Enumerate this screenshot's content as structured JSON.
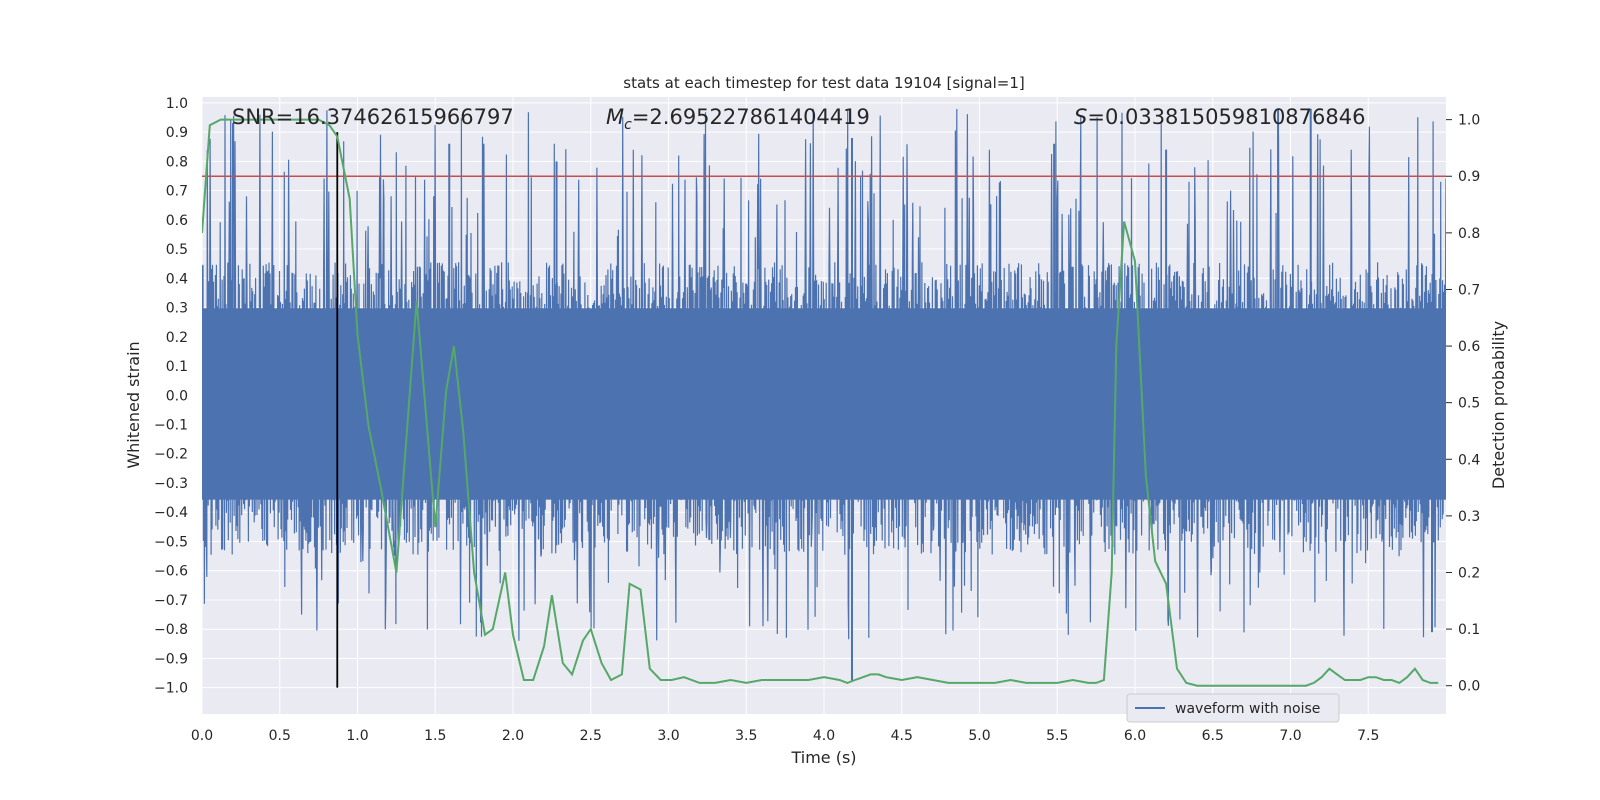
{
  "chart_data": {
    "type": "line",
    "title": "stats at each timestep for test data 19104 [signal=1]",
    "xlabel": "Time (s)",
    "ylabel_left": "Whitened strain",
    "ylabel_right": "Detection probability",
    "xlim": [
      0,
      8
    ],
    "ylim_left": [
      -1.09,
      1.02
    ],
    "ylim_right": [
      -0.05,
      1.04
    ],
    "x_ticks": [
      "0.0",
      "0.5",
      "1.0",
      "1.5",
      "2.0",
      "2.5",
      "3.0",
      "3.5",
      "4.0",
      "4.5",
      "5.0",
      "5.5",
      "6.0",
      "6.5",
      "7.0",
      "7.5"
    ],
    "y_left_ticks": [
      "1.0",
      "0.9",
      "0.8",
      "0.7",
      "0.6",
      "0.5",
      "0.4",
      "0.3",
      "0.2",
      "0.1",
      "0.0",
      "-0.1",
      "-0.2",
      "-0.3",
      "-0.4",
      "-0.5",
      "-0.6",
      "-0.7",
      "-0.8",
      "-0.9",
      "-1.0"
    ],
    "y_right_ticks": [
      "1.0",
      "0.9",
      "0.8",
      "0.7",
      "0.6",
      "0.5",
      "0.4",
      "0.3",
      "0.2",
      "0.1",
      "0.0"
    ],
    "annotations": {
      "snr": "SNR=16.37462615966797",
      "mc_symbol": "M",
      "mc_sub": "c",
      "mc_value": "=2.695227861404419",
      "s_symbol": "S",
      "s_value": "=0.033815059810876846"
    },
    "legend": {
      "label": "waveform with noise",
      "location": "lower-right"
    },
    "threshold": 0.9,
    "marker_time": 0.87,
    "series": [
      {
        "name": "waveform with noise",
        "axis": "left",
        "color": "#4c72b0",
        "description": "dense whitened strain, roughly uniform noise band",
        "band": {
          "core_low": -0.42,
          "core_high": 0.35,
          "spike_low": -0.84,
          "spike_high": 0.98
        },
        "notable_spikes": [
          {
            "t": 4.18,
            "v": -0.98
          },
          {
            "t": 4.18,
            "v": 0.88
          },
          {
            "t": 6.92,
            "v": 0.98
          },
          {
            "t": 7.13,
            "v": 0.98
          },
          {
            "t": 1.59,
            "v": 0.86
          },
          {
            "t": 1.81,
            "v": 0.86
          },
          {
            "t": 5.48,
            "v": 0.86
          },
          {
            "t": 6.2,
            "v": 0.84
          },
          {
            "t": 2.28,
            "v": 0.8
          },
          {
            "t": 7.91,
            "v": -0.81
          }
        ]
      },
      {
        "name": "detection probability",
        "axis": "right",
        "color": "#55a868",
        "x": [
          0.0,
          0.05,
          0.12,
          0.3,
          0.5,
          0.75,
          0.82,
          0.87,
          0.95,
          1.0,
          1.07,
          1.15,
          1.25,
          1.38,
          1.5,
          1.57,
          1.62,
          1.68,
          1.75,
          1.82,
          1.87,
          1.95,
          2.0,
          2.07,
          2.13,
          2.2,
          2.25,
          2.32,
          2.38,
          2.45,
          2.5,
          2.57,
          2.63,
          2.7,
          2.75,
          2.82,
          2.88,
          2.95,
          3.02,
          3.1,
          3.2,
          3.3,
          3.4,
          3.5,
          3.6,
          3.7,
          3.8,
          3.9,
          4.0,
          4.1,
          4.15,
          4.2,
          4.25,
          4.3,
          4.35,
          4.4,
          4.5,
          4.6,
          4.7,
          4.8,
          4.9,
          5.0,
          5.1,
          5.2,
          5.3,
          5.4,
          5.5,
          5.6,
          5.7,
          5.75,
          5.8,
          5.85,
          5.88,
          5.93,
          6.0,
          6.07,
          6.13,
          6.2,
          6.27,
          6.33,
          6.4,
          6.5,
          6.6,
          6.7,
          6.8,
          6.9,
          7.0,
          7.1,
          7.15,
          7.2,
          7.25,
          7.3,
          7.35,
          7.4,
          7.45,
          7.5,
          7.55,
          7.6,
          7.65,
          7.7,
          7.75,
          7.8,
          7.85,
          7.9,
          7.95
        ],
        "y": [
          0.8,
          0.99,
          1.0,
          1.0,
          1.0,
          1.0,
          0.99,
          0.97,
          0.86,
          0.62,
          0.46,
          0.35,
          0.2,
          0.68,
          0.28,
          0.52,
          0.6,
          0.45,
          0.2,
          0.09,
          0.1,
          0.2,
          0.09,
          0.01,
          0.01,
          0.07,
          0.16,
          0.04,
          0.02,
          0.08,
          0.1,
          0.04,
          0.01,
          0.02,
          0.18,
          0.17,
          0.03,
          0.01,
          0.01,
          0.015,
          0.005,
          0.005,
          0.01,
          0.005,
          0.01,
          0.01,
          0.01,
          0.01,
          0.015,
          0.01,
          0.005,
          0.01,
          0.015,
          0.02,
          0.02,
          0.015,
          0.01,
          0.015,
          0.01,
          0.005,
          0.005,
          0.005,
          0.005,
          0.01,
          0.005,
          0.005,
          0.005,
          0.01,
          0.005,
          0.005,
          0.01,
          0.2,
          0.6,
          0.82,
          0.75,
          0.37,
          0.22,
          0.18,
          0.03,
          0.005,
          0.0,
          0.0,
          0.0,
          0.0,
          0.0,
          0.0,
          0.0,
          0.0,
          0.005,
          0.015,
          0.03,
          0.02,
          0.01,
          0.01,
          0.01,
          0.015,
          0.015,
          0.01,
          0.01,
          0.005,
          0.015,
          0.03,
          0.01,
          0.005,
          0.005
        ]
      }
    ]
  }
}
